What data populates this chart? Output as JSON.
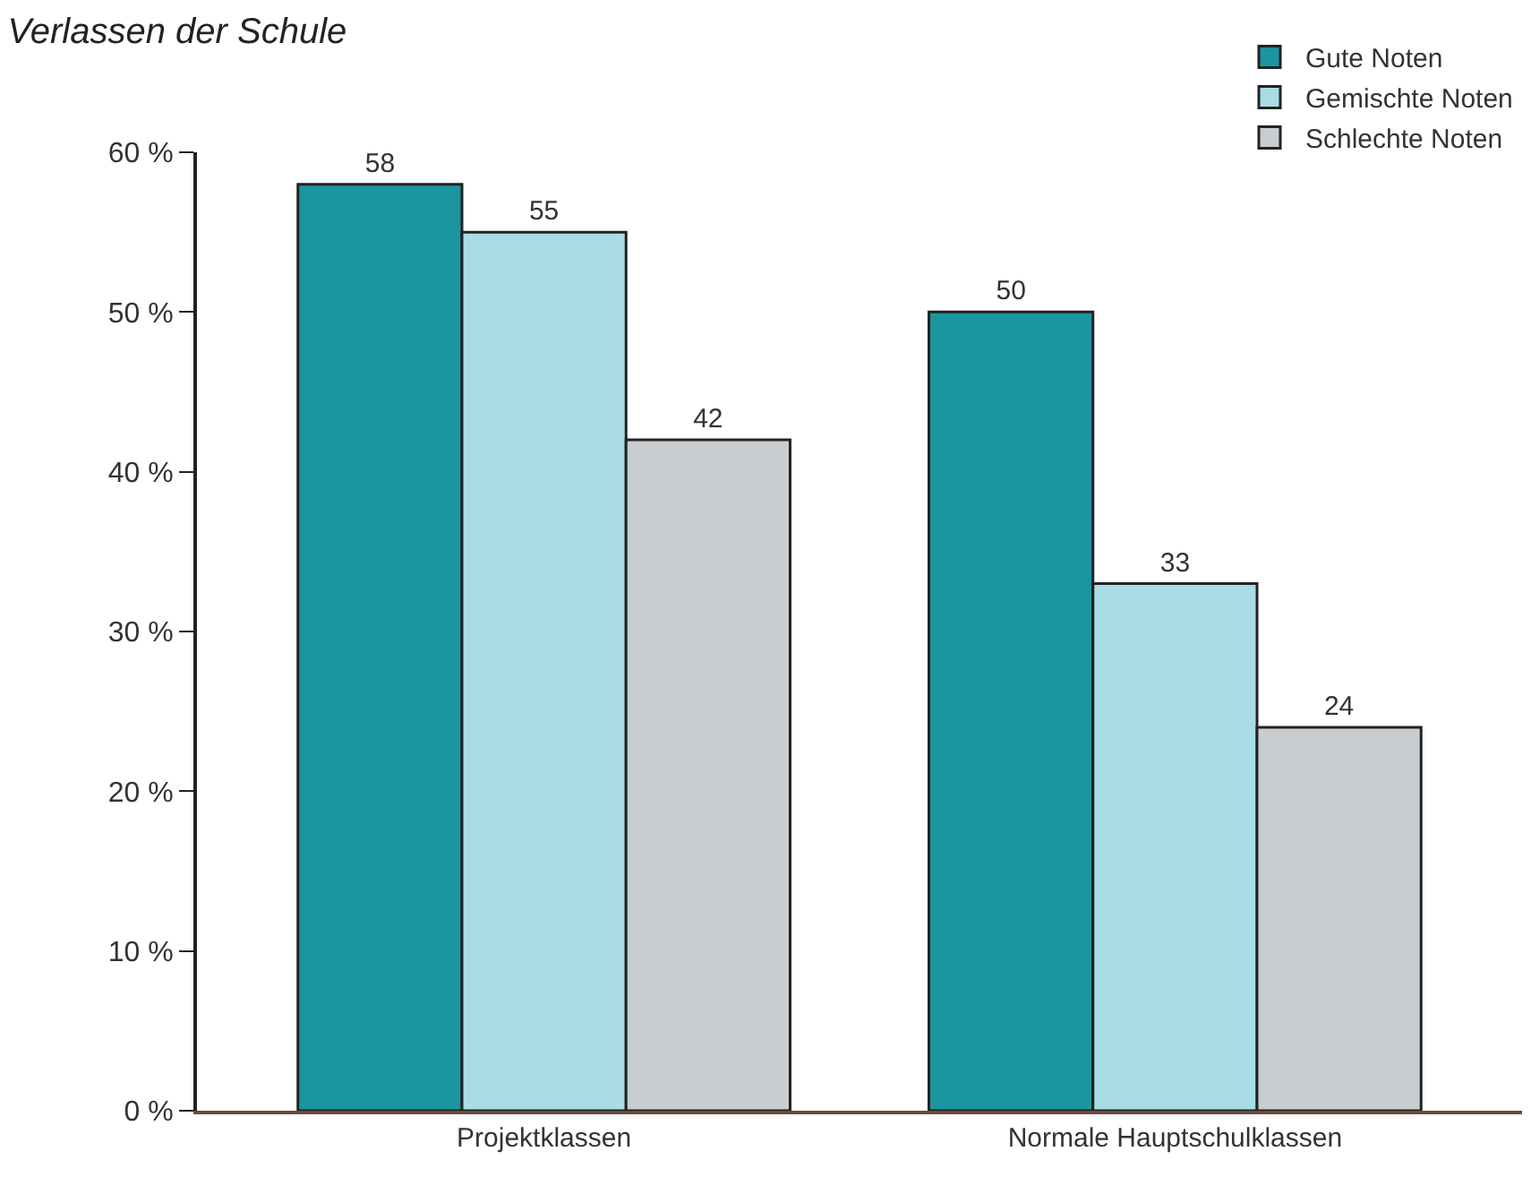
{
  "chart_data": {
    "type": "bar",
    "title": "Verlassen der Schule",
    "categories": [
      "Projektklassen",
      "Normale Hauptschulklassen"
    ],
    "series": [
      {
        "name": "Gute Noten",
        "color": "#1b95a0",
        "values": [
          58,
          50
        ]
      },
      {
        "name": "Gemischte Noten",
        "color": "#a8dde6",
        "values": [
          55,
          33
        ]
      },
      {
        "name": "Schlechte Noten",
        "color": "#c8cdd0",
        "values": [
          42,
          24
        ]
      }
    ],
    "ylim": [
      0,
      60
    ],
    "yticks": [
      {
        "value": 0,
        "label": "0 %"
      },
      {
        "value": 10,
        "label": "10 %"
      },
      {
        "value": 20,
        "label": "20 %"
      },
      {
        "value": 30,
        "label": "30 %"
      },
      {
        "value": 40,
        "label": "40 %"
      },
      {
        "value": 50,
        "label": "50 %"
      },
      {
        "value": 60,
        "label": "60 %"
      }
    ],
    "data_labels": true,
    "legend": "top right",
    "grid": false
  }
}
